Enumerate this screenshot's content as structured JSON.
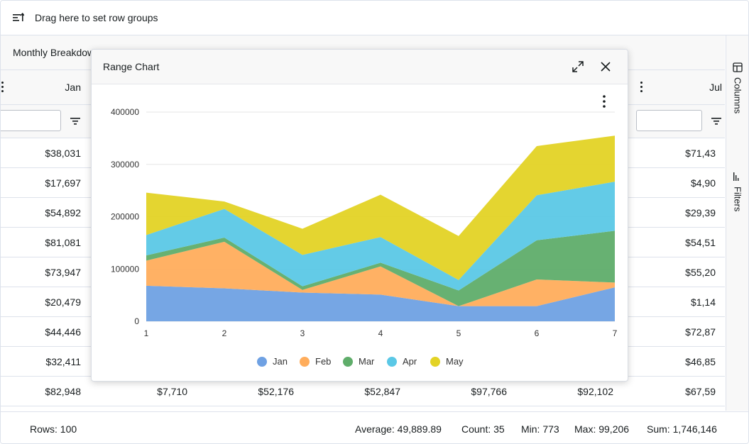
{
  "rowgroup": {
    "label": "Drag here to set row groups"
  },
  "group_header": {
    "label": "Monthly Breakdown"
  },
  "columns": [
    {
      "label": "Jan"
    },
    {
      "label": "Jul"
    }
  ],
  "rows": [
    {
      "jan": "$38,031",
      "jul": "$71,43"
    },
    {
      "jan": "$17,697",
      "jul": "$4,90"
    },
    {
      "jan": "$54,892",
      "jul": "$29,39"
    },
    {
      "jan": "$81,081",
      "jul": "$54,51"
    },
    {
      "jan": "$73,947",
      "jul": "$55,20"
    },
    {
      "jan": "$20,479",
      "jul": "$1,14"
    },
    {
      "jan": "$44,446",
      "jul": "$72,87"
    },
    {
      "jan": "$32,411",
      "jul": "$46,85"
    },
    {
      "jan": "$82,948",
      "c2": "$7,710",
      "c3": "$52,176",
      "c4": "$52,847",
      "c5": "$97,766",
      "c6": "$92,102",
      "jul": "$67,59"
    }
  ],
  "sidebar": {
    "columns_label": "Columns",
    "filters_label": "Filters"
  },
  "status": {
    "rows_label": "Rows:",
    "rows_value": "100",
    "avg_label": "Average:",
    "avg_value": "49,889.89",
    "count_label": "Count:",
    "count_value": "35",
    "min_label": "Min:",
    "min_value": "773",
    "max_label": "Max:",
    "max_value": "99,206",
    "sum_label": "Sum:",
    "sum_value": "1,746,146"
  },
  "popup": {
    "title": "Range Chart"
  },
  "icons": {
    "rowgroup": "row-group-icon",
    "kebab": "kebab-menu-icon",
    "filter": "filter-icon",
    "expand": "expand-icon",
    "close": "close-icon",
    "columns": "columns-icon",
    "filters": "filters-icon"
  },
  "chart_data": {
    "type": "area",
    "stacked": true,
    "x": [
      1,
      2,
      3,
      4,
      5,
      6,
      7
    ],
    "ylim": [
      0,
      400000
    ],
    "yticks": [
      0,
      100000,
      200000,
      300000,
      400000
    ],
    "grid": true,
    "legend": "bottom",
    "series": [
      {
        "name": "Jan",
        "color": "#6fa1e3",
        "values": [
          68000,
          63000,
          55000,
          51000,
          29000,
          29000,
          65000
        ]
      },
      {
        "name": "Feb",
        "color": "#ffad5c",
        "values": [
          48000,
          89000,
          5000,
          54000,
          0,
          51000,
          9000
        ]
      },
      {
        "name": "Mar",
        "color": "#5fad6a",
        "values": [
          10000,
          8000,
          7000,
          7000,
          30000,
          75000,
          99000
        ]
      },
      {
        "name": "Apr",
        "color": "#5bc8e6",
        "values": [
          39000,
          55000,
          60000,
          49000,
          20000,
          86000,
          94000
        ]
      },
      {
        "name": "May",
        "color": "#e3d325",
        "values": [
          81000,
          14000,
          50000,
          81000,
          84000,
          94000,
          88000
        ]
      }
    ]
  }
}
